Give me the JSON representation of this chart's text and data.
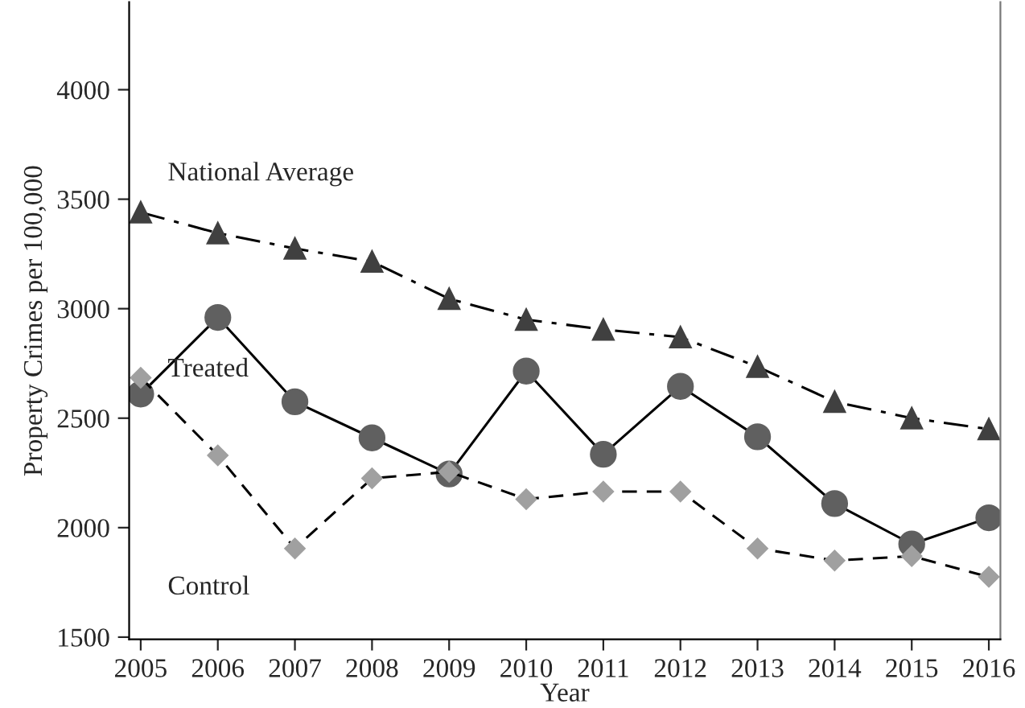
{
  "chart_data": {
    "type": "line",
    "xlabel": "Year",
    "ylabel": "Property Crimes per 100,000",
    "x": [
      2005,
      2006,
      2007,
      2008,
      2009,
      2010,
      2011,
      2012,
      2013,
      2014,
      2015,
      2016
    ],
    "series": [
      {
        "name": "National Average",
        "color": "#404040",
        "marker": "triangle",
        "line_style": "dashdot",
        "values": [
          3440,
          3345,
          3275,
          3215,
          3045,
          2950,
          2905,
          2870,
          2735,
          2575,
          2500,
          2450
        ]
      },
      {
        "name": "Treated",
        "color": "#606060",
        "marker": "circle",
        "line_style": "solid",
        "values": [
          2610,
          2960,
          2575,
          2410,
          2245,
          2715,
          2335,
          2645,
          2415,
          2110,
          1925,
          2045
        ]
      },
      {
        "name": "Control",
        "color": "#a0a0a0",
        "marker": "diamond",
        "line_style": "dashed",
        "values": [
          2685,
          2330,
          1905,
          2225,
          2255,
          2130,
          2165,
          2165,
          1905,
          1850,
          1870,
          1775
        ]
      }
    ],
    "xlim": [
      2004.85,
      2016.15
    ],
    "ylim": [
      1490,
      4400
    ],
    "xticks": [
      2005,
      2006,
      2007,
      2008,
      2009,
      2010,
      2011,
      2012,
      2013,
      2014,
      2015,
      2016
    ],
    "yticks": [
      1500,
      2000,
      2500,
      3000,
      3500,
      4000
    ],
    "grid": false,
    "legend": false
  }
}
